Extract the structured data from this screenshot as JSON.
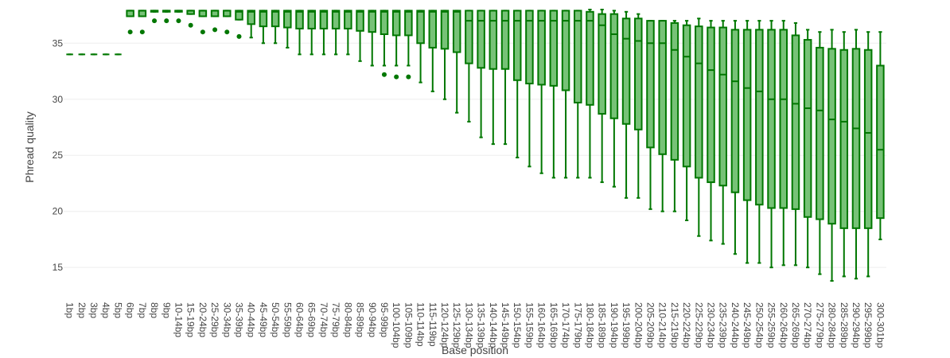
{
  "colors": {
    "box_line": "#007700",
    "box_fill": "#77c277",
    "grid": "#eeeeee"
  },
  "chart_data": {
    "type": "box",
    "xlabel": "Base position",
    "ylabel": "Phread quality",
    "ylim": [
      12.6,
      38.0
    ],
    "yticks": [
      15,
      20,
      25,
      30,
      35
    ],
    "grid": true,
    "categories": [
      "1bp",
      "2bp",
      "3bp",
      "4bp",
      "5bp",
      "6bp",
      "7bp",
      "8bp",
      "9bp",
      "10-14bp",
      "15-19bp",
      "20-24bp",
      "25-29bp",
      "30-34bp",
      "35-39bp",
      "40-44bp",
      "45-49bp",
      "50-54bp",
      "55-59bp",
      "60-64bp",
      "65-69bp",
      "70-74bp",
      "75-79bp",
      "80-84bp",
      "85-89bp",
      "90-94bp",
      "95-99bp",
      "100-104bp",
      "105-109bp",
      "110-114bp",
      "115-119bp",
      "120-124bp",
      "125-129bp",
      "130-134bp",
      "135-139bp",
      "140-144bp",
      "145-149bp",
      "150-154bp",
      "155-159bp",
      "160-164bp",
      "165-169bp",
      "170-174bp",
      "175-179bp",
      "180-184bp",
      "185-189bp",
      "190-194bp",
      "195-199bp",
      "200-204bp",
      "205-209bp",
      "210-214bp",
      "215-219bp",
      "220-224bp",
      "225-229bp",
      "230-234bp",
      "235-239bp",
      "240-244bp",
      "245-249bp",
      "250-254bp",
      "255-259bp",
      "260-264bp",
      "265-269bp",
      "270-274bp",
      "275-279bp",
      "280-284bp",
      "285-289bp",
      "290-294bp",
      "295-299bp",
      "300-301bp"
    ],
    "boxes": [
      {
        "min": 34,
        "q1": 34,
        "median": 34,
        "q3": 34,
        "max": 34,
        "outliers": []
      },
      {
        "min": 34,
        "q1": 34,
        "median": 34,
        "q3": 34,
        "max": 34,
        "outliers": []
      },
      {
        "min": 34,
        "q1": 34,
        "median": 34,
        "q3": 34,
        "max": 34,
        "outliers": []
      },
      {
        "min": 34,
        "q1": 34,
        "median": 34,
        "q3": 34,
        "max": 34,
        "outliers": []
      },
      {
        "min": 34,
        "q1": 34,
        "median": 34,
        "q3": 34,
        "max": 34,
        "outliers": []
      },
      {
        "min": 37.4,
        "q1": 37.4,
        "median": 37.9,
        "q3": 37.9,
        "max": 37.9,
        "outliers": [
          36
        ]
      },
      {
        "min": 37.4,
        "q1": 37.4,
        "median": 37.9,
        "q3": 37.9,
        "max": 37.9,
        "outliers": [
          36
        ]
      },
      {
        "min": 37.8,
        "q1": 37.8,
        "median": 37.9,
        "q3": 37.9,
        "max": 37.9,
        "outliers": [
          37
        ]
      },
      {
        "min": 37.8,
        "q1": 37.8,
        "median": 37.9,
        "q3": 37.9,
        "max": 37.9,
        "outliers": [
          37
        ]
      },
      {
        "min": 37.8,
        "q1": 37.8,
        "median": 37.9,
        "q3": 37.9,
        "max": 37.9,
        "outliers": [
          37
        ]
      },
      {
        "min": 37.6,
        "q1": 37.6,
        "median": 37.9,
        "q3": 37.9,
        "max": 37.9,
        "outliers": [
          36.6
        ]
      },
      {
        "min": 37.4,
        "q1": 37.4,
        "median": 37.9,
        "q3": 37.9,
        "max": 37.9,
        "outliers": [
          36
        ]
      },
      {
        "min": 37.4,
        "q1": 37.4,
        "median": 37.9,
        "q3": 37.9,
        "max": 37.9,
        "outliers": [
          36.2
        ]
      },
      {
        "min": 37.4,
        "q1": 37.4,
        "median": 37.9,
        "q3": 37.9,
        "max": 37.9,
        "outliers": [
          36
        ]
      },
      {
        "min": 37.1,
        "q1": 37.1,
        "median": 37.8,
        "q3": 37.9,
        "max": 37.9,
        "outliers": [
          35.6
        ]
      },
      {
        "min": 35.5,
        "q1": 36.7,
        "median": 37.8,
        "q3": 37.9,
        "max": 37.9,
        "outliers": []
      },
      {
        "min": 35,
        "q1": 36.5,
        "median": 37.8,
        "q3": 37.9,
        "max": 37.9,
        "outliers": []
      },
      {
        "min": 35,
        "q1": 36.5,
        "median": 37.8,
        "q3": 37.9,
        "max": 37.9,
        "outliers": []
      },
      {
        "min": 34.6,
        "q1": 36.4,
        "median": 37.8,
        "q3": 37.9,
        "max": 37.9,
        "outliers": []
      },
      {
        "min": 34,
        "q1": 36.3,
        "median": 37.8,
        "q3": 37.9,
        "max": 37.9,
        "outliers": []
      },
      {
        "min": 34,
        "q1": 36.3,
        "median": 37.8,
        "q3": 37.9,
        "max": 37.9,
        "outliers": []
      },
      {
        "min": 34,
        "q1": 36.3,
        "median": 37.8,
        "q3": 37.9,
        "max": 37.9,
        "outliers": []
      },
      {
        "min": 34,
        "q1": 36.3,
        "median": 37.8,
        "q3": 37.9,
        "max": 37.9,
        "outliers": []
      },
      {
        "min": 34,
        "q1": 36.3,
        "median": 37.8,
        "q3": 37.9,
        "max": 37.9,
        "outliers": []
      },
      {
        "min": 33.4,
        "q1": 36.1,
        "median": 37.8,
        "q3": 37.9,
        "max": 37.9,
        "outliers": []
      },
      {
        "min": 33,
        "q1": 36,
        "median": 37.8,
        "q3": 37.9,
        "max": 37.9,
        "outliers": []
      },
      {
        "min": 33,
        "q1": 35.8,
        "median": 37.8,
        "q3": 37.9,
        "max": 37.9,
        "outliers": [
          32.2
        ]
      },
      {
        "min": 33,
        "q1": 35.7,
        "median": 37.8,
        "q3": 37.9,
        "max": 37.9,
        "outliers": [
          32
        ]
      },
      {
        "min": 33,
        "q1": 35.7,
        "median": 37.8,
        "q3": 37.9,
        "max": 37.9,
        "outliers": [
          32
        ]
      },
      {
        "min": 31.5,
        "q1": 35,
        "median": 37.8,
        "q3": 37.9,
        "max": 37.9,
        "outliers": []
      },
      {
        "min": 30.7,
        "q1": 34.6,
        "median": 37.8,
        "q3": 37.9,
        "max": 37.9,
        "outliers": []
      },
      {
        "min": 30,
        "q1": 34.5,
        "median": 37.8,
        "q3": 37.9,
        "max": 37.9,
        "outliers": []
      },
      {
        "min": 28.8,
        "q1": 34.2,
        "median": 37.8,
        "q3": 37.9,
        "max": 37.9,
        "outliers": []
      },
      {
        "min": 28,
        "q1": 33.2,
        "median": 37,
        "q3": 37.9,
        "max": 37.9,
        "outliers": []
      },
      {
        "min": 26.6,
        "q1": 32.8,
        "median": 37,
        "q3": 37.9,
        "max": 37.9,
        "outliers": []
      },
      {
        "min": 26,
        "q1": 32.7,
        "median": 37,
        "q3": 37.9,
        "max": 37.9,
        "outliers": []
      },
      {
        "min": 26,
        "q1": 32.7,
        "median": 37,
        "q3": 37.9,
        "max": 37.9,
        "outliers": []
      },
      {
        "min": 24.8,
        "q1": 31.7,
        "median": 37,
        "q3": 37.9,
        "max": 37.9,
        "outliers": []
      },
      {
        "min": 24,
        "q1": 31.4,
        "median": 37,
        "q3": 37.9,
        "max": 37.9,
        "outliers": []
      },
      {
        "min": 23.4,
        "q1": 31.3,
        "median": 37,
        "q3": 37.9,
        "max": 37.9,
        "outliers": []
      },
      {
        "min": 23,
        "q1": 31.2,
        "median": 37,
        "q3": 37.9,
        "max": 37.9,
        "outliers": []
      },
      {
        "min": 23,
        "q1": 30.8,
        "median": 37,
        "q3": 37.9,
        "max": 37.9,
        "outliers": []
      },
      {
        "min": 23,
        "q1": 29.7,
        "median": 37,
        "q3": 37.9,
        "max": 37.9,
        "outliers": []
      },
      {
        "min": 23,
        "q1": 29.5,
        "median": 37,
        "q3": 37.8,
        "max": 38,
        "outliers": []
      },
      {
        "min": 22.6,
        "q1": 28.7,
        "median": 36.6,
        "q3": 37.6,
        "max": 38,
        "outliers": []
      },
      {
        "min": 22.2,
        "q1": 28.3,
        "median": 35.8,
        "q3": 37.6,
        "max": 37.9,
        "outliers": []
      },
      {
        "min": 21.2,
        "q1": 27.8,
        "median": 35.4,
        "q3": 37.2,
        "max": 37.8,
        "outliers": []
      },
      {
        "min": 21.2,
        "q1": 27.3,
        "median": 35.2,
        "q3": 37.2,
        "max": 37.6,
        "outliers": []
      },
      {
        "min": 20.2,
        "q1": 25.7,
        "median": 35,
        "q3": 37,
        "max": 37,
        "outliers": []
      },
      {
        "min": 20,
        "q1": 25.1,
        "median": 35,
        "q3": 37,
        "max": 37,
        "outliers": []
      },
      {
        "min": 20,
        "q1": 24.6,
        "median": 34.4,
        "q3": 36.8,
        "max": 37,
        "outliers": []
      },
      {
        "min": 19.2,
        "q1": 24,
        "median": 33.8,
        "q3": 36.6,
        "max": 37,
        "outliers": []
      },
      {
        "min": 17.8,
        "q1": 23,
        "median": 33.2,
        "q3": 36.5,
        "max": 37.2,
        "outliers": []
      },
      {
        "min": 17.4,
        "q1": 22.6,
        "median": 32.6,
        "q3": 36.4,
        "max": 37,
        "outliers": []
      },
      {
        "min": 17.1,
        "q1": 22.3,
        "median": 32.2,
        "q3": 36.4,
        "max": 37,
        "outliers": []
      },
      {
        "min": 16.2,
        "q1": 21.7,
        "median": 31.6,
        "q3": 36.2,
        "max": 37,
        "outliers": []
      },
      {
        "min": 15.4,
        "q1": 21,
        "median": 31,
        "q3": 36.2,
        "max": 37,
        "outliers": []
      },
      {
        "min": 15.4,
        "q1": 20.6,
        "median": 30.7,
        "q3": 36.2,
        "max": 37,
        "outliers": []
      },
      {
        "min": 15,
        "q1": 20.3,
        "median": 30,
        "q3": 36.2,
        "max": 37,
        "outliers": []
      },
      {
        "min": 15.2,
        "q1": 20.3,
        "median": 30,
        "q3": 36.2,
        "max": 37,
        "outliers": []
      },
      {
        "min": 15.2,
        "q1": 20.2,
        "median": 29.6,
        "q3": 35.7,
        "max": 36.8,
        "outliers": []
      },
      {
        "min": 15,
        "q1": 19.5,
        "median": 29.2,
        "q3": 35.3,
        "max": 36.2,
        "outliers": []
      },
      {
        "min": 14.4,
        "q1": 19.3,
        "median": 29,
        "q3": 34.6,
        "max": 36,
        "outliers": []
      },
      {
        "min": 13.8,
        "q1": 18.9,
        "median": 28.2,
        "q3": 34.5,
        "max": 36.2,
        "outliers": []
      },
      {
        "min": 14.2,
        "q1": 18.5,
        "median": 28,
        "q3": 34.4,
        "max": 36,
        "outliers": []
      },
      {
        "min": 14,
        "q1": 18.5,
        "median": 27.4,
        "q3": 34.5,
        "max": 36.2,
        "outliers": []
      },
      {
        "min": 14.2,
        "q1": 18.5,
        "median": 27,
        "q3": 34.4,
        "max": 36,
        "outliers": []
      },
      {
        "min": 17.5,
        "q1": 19.4,
        "median": 25.5,
        "q3": 33,
        "max": 36,
        "outliers": []
      }
    ]
  }
}
